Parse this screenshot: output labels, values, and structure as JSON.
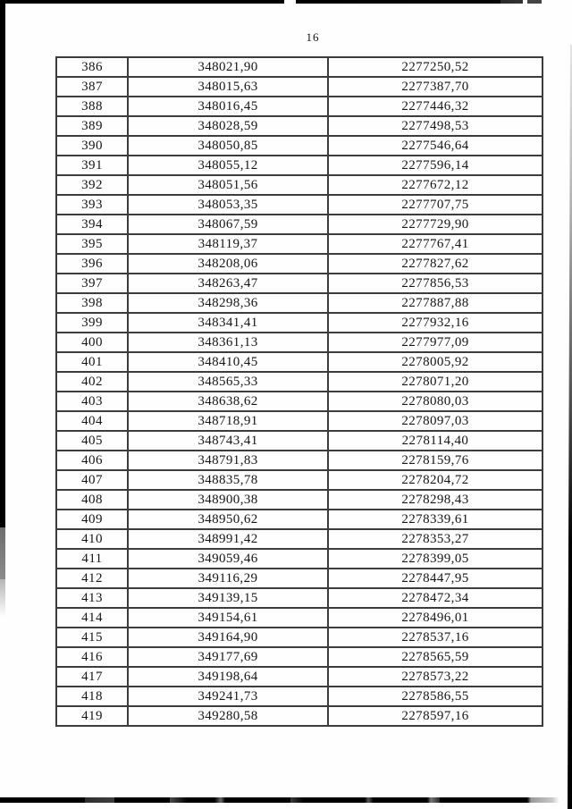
{
  "page": {
    "number": "16"
  },
  "table": {
    "rows": [
      [
        "386",
        "348021,90",
        "2277250,52"
      ],
      [
        "387",
        "348015,63",
        "2277387,70"
      ],
      [
        "388",
        "348016,45",
        "2277446,32"
      ],
      [
        "389",
        "348028,59",
        "2277498,53"
      ],
      [
        "390",
        "348050,85",
        "2277546,64"
      ],
      [
        "391",
        "348055,12",
        "2277596,14"
      ],
      [
        "392",
        "348051,56",
        "2277672,12"
      ],
      [
        "393",
        "348053,35",
        "2277707,75"
      ],
      [
        "394",
        "348067,59",
        "2277729,90"
      ],
      [
        "395",
        "348119,37",
        "2277767,41"
      ],
      [
        "396",
        "348208,06",
        "2277827,62"
      ],
      [
        "397",
        "348263,47",
        "2277856,53"
      ],
      [
        "398",
        "348298,36",
        "2277887,88"
      ],
      [
        "399",
        "348341,41",
        "2277932,16"
      ],
      [
        "400",
        "348361,13",
        "2277977,09"
      ],
      [
        "401",
        "348410,45",
        "2278005,92"
      ],
      [
        "402",
        "348565,33",
        "2278071,20"
      ],
      [
        "403",
        "348638,62",
        "2278080,03"
      ],
      [
        "404",
        "348718,91",
        "2278097,03"
      ],
      [
        "405",
        "348743,41",
        "2278114,40"
      ],
      [
        "406",
        "348791,83",
        "2278159,76"
      ],
      [
        "407",
        "348835,78",
        "2278204,72"
      ],
      [
        "408",
        "348900,38",
        "2278298,43"
      ],
      [
        "409",
        "348950,62",
        "2278339,61"
      ],
      [
        "410",
        "348991,42",
        "2278353,27"
      ],
      [
        "411",
        "349059,46",
        "2278399,05"
      ],
      [
        "412",
        "349116,29",
        "2278447,95"
      ],
      [
        "413",
        "349139,15",
        "2278472,34"
      ],
      [
        "414",
        "349154,61",
        "2278496,01"
      ],
      [
        "415",
        "349164,90",
        "2278537,16"
      ],
      [
        "416",
        "349177,69",
        "2278565,59"
      ],
      [
        "417",
        "349198,64",
        "2278573,22"
      ],
      [
        "418",
        "349241,73",
        "2278586,55"
      ],
      [
        "419",
        "349280,58",
        "2278597,16"
      ]
    ]
  }
}
